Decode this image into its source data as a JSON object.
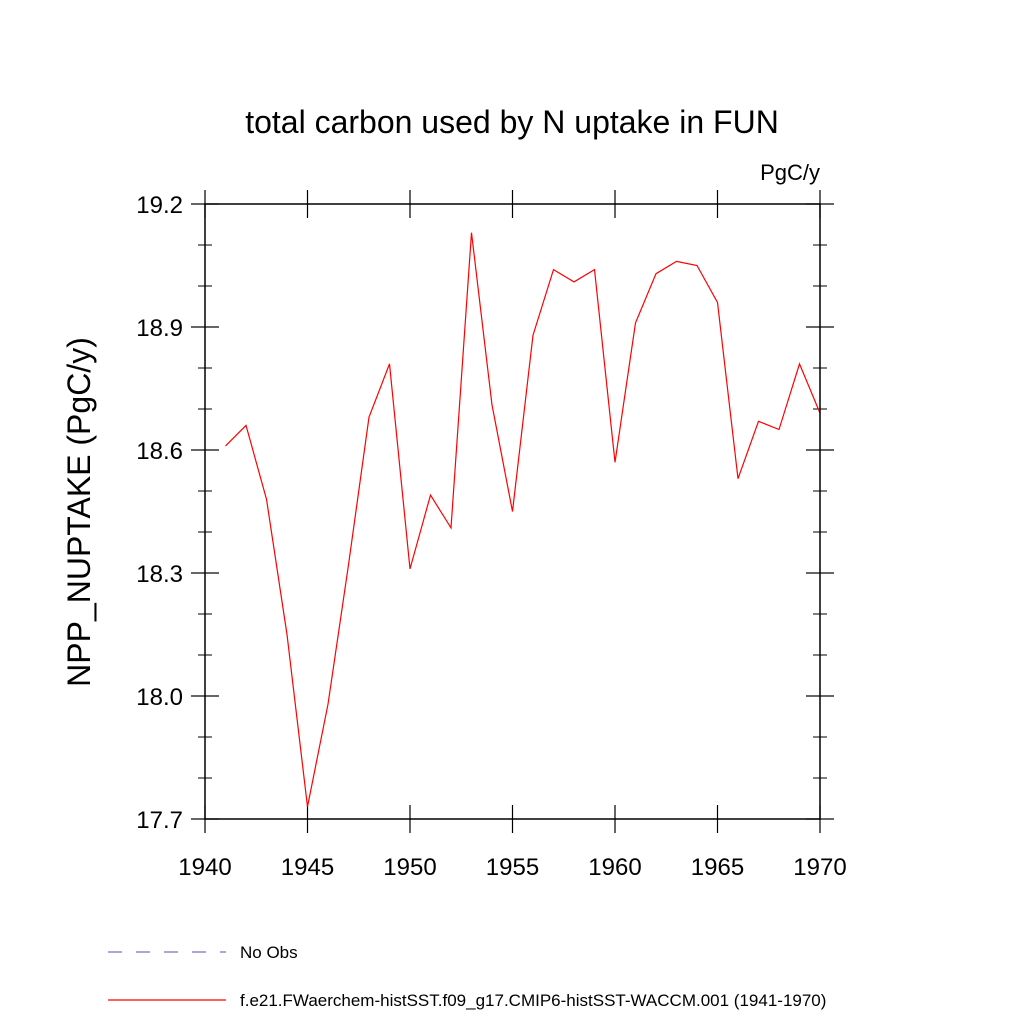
{
  "chart_data": {
    "type": "line",
    "title": "total carbon used by N uptake in FUN",
    "units_label": "PgC/y",
    "ylabel": "NPP_NUPTAKE  (PgC/y)",
    "xlabel": "",
    "xlim": [
      1940,
      1970
    ],
    "ylim": [
      17.7,
      19.2
    ],
    "xticks": [
      1940,
      1945,
      1950,
      1955,
      1960,
      1965,
      1970
    ],
    "yticks": [
      "17.7",
      "18.0",
      "18.3",
      "18.6",
      "18.9",
      "19.2"
    ],
    "grid": false,
    "series": [
      {
        "name": "f.e21.FWaerchem-histSST.f09_g17.CMIP6-histSST-WACCM.001 (1941-1970)",
        "color": "#ff0000",
        "style": "solid",
        "x": [
          1941,
          1942,
          1943,
          1944,
          1945,
          1946,
          1947,
          1948,
          1949,
          1950,
          1951,
          1952,
          1953,
          1954,
          1955,
          1956,
          1957,
          1958,
          1959,
          1960,
          1961,
          1962,
          1963,
          1964,
          1965,
          1966,
          1967,
          1968,
          1969,
          1970
        ],
        "y": [
          18.61,
          18.66,
          18.48,
          18.15,
          17.73,
          17.98,
          18.32,
          18.68,
          18.81,
          18.31,
          18.49,
          18.41,
          19.13,
          18.71,
          18.45,
          18.88,
          19.04,
          19.01,
          19.04,
          18.57,
          18.91,
          19.03,
          19.06,
          19.05,
          18.96,
          18.53,
          18.67,
          18.65,
          18.81,
          18.69
        ]
      }
    ],
    "legend": [
      {
        "label": "No Obs",
        "color": "#7b6fc0",
        "style": "dashed"
      },
      {
        "label": "f.e21.FWaerchem-histSST.f09_g17.CMIP6-histSST-WACCM.001 (1941-1970)",
        "color": "#ff0000",
        "style": "solid"
      }
    ]
  }
}
